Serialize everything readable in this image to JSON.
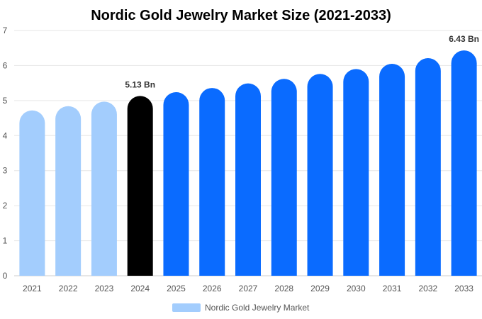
{
  "chart_data": {
    "type": "bar",
    "title": "Nordic Gold Jewelry Market Size (2021-2033)",
    "xlabel": "",
    "ylabel": "",
    "ylim": [
      0,
      7
    ],
    "yticks": [
      "0",
      "1",
      "2",
      "3",
      "4",
      "5",
      "6",
      "7"
    ],
    "categories": [
      "2021",
      "2022",
      "2023",
      "2024",
      "2025",
      "2026",
      "2027",
      "2028",
      "2029",
      "2030",
      "2031",
      "2032",
      "2033"
    ],
    "series": [
      {
        "name": "Nordic Gold Jewelry Market",
        "values": [
          4.72,
          4.84,
          4.97,
          5.13,
          5.24,
          5.36,
          5.49,
          5.62,
          5.76,
          5.9,
          6.05,
          6.21,
          6.43
        ]
      }
    ],
    "data_labels": [
      {
        "category": "2024",
        "text": "5.13 Bn"
      },
      {
        "category": "2033",
        "text": "6.43 Bn"
      }
    ],
    "colors": {
      "historical": "#a3cdfd",
      "base_year": "#000000",
      "forecast": "#0a6bff",
      "legend_swatch": "#a3cdfd",
      "grid": "#e6e6e6",
      "axis": "#cccccc"
    },
    "grid": true,
    "legend_position": "bottom"
  }
}
